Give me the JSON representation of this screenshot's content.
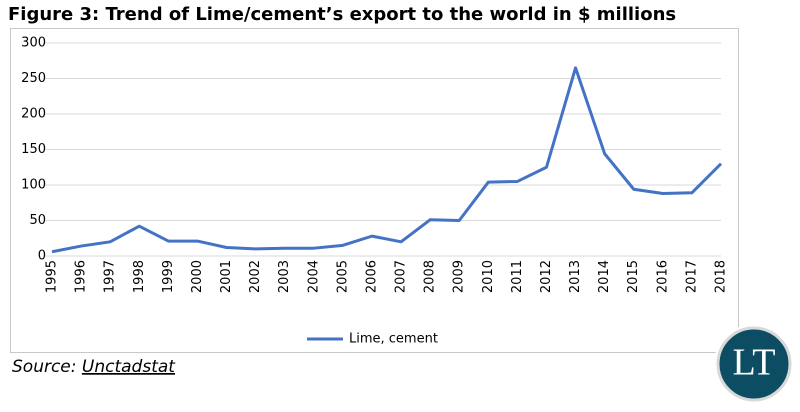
{
  "chart_data": {
    "type": "line",
    "title": "Figure 3: Trend of Lime/cement’s export to the world in $ millions",
    "categories": [
      "1995",
      "1996",
      "1997",
      "1998",
      "1999",
      "2000",
      "2001",
      "2002",
      "2003",
      "2004",
      "2005",
      "2006",
      "2007",
      "2008",
      "2009",
      "2010",
      "2011",
      "2012",
      "2013",
      "2014",
      "2015",
      "2016",
      "2017",
      "2018"
    ],
    "series": [
      {
        "name": "Lime, cement",
        "color": "#4472c4",
        "values": [
          6,
          14,
          20,
          42,
          21,
          21,
          12,
          10,
          11,
          11,
          15,
          28,
          20,
          51,
          50,
          104,
          105,
          125,
          265,
          144,
          94,
          88,
          89,
          130
        ]
      }
    ],
    "ylim": [
      0,
      300
    ],
    "yticks": [
      0,
      50,
      100,
      150,
      200,
      250,
      300
    ],
    "grid": true,
    "legend": "bottom",
    "source_label": "Source:",
    "source": "Unctadstat"
  },
  "logo": "LT"
}
